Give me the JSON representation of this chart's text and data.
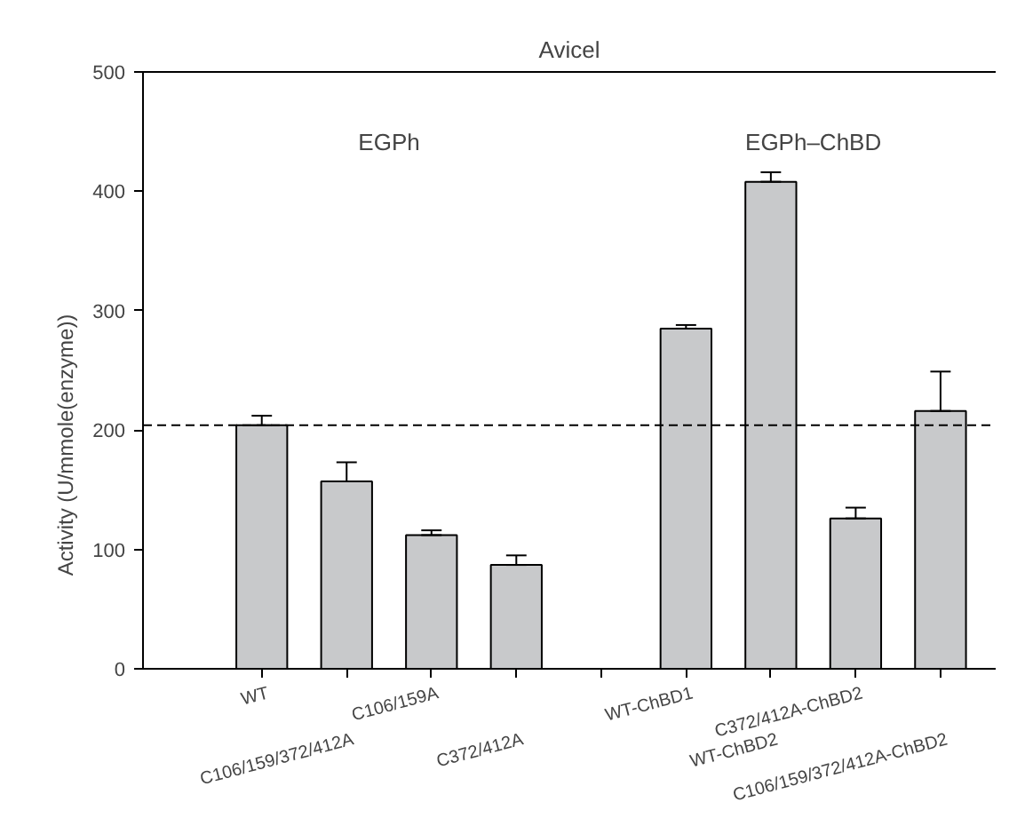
{
  "chart_data": {
    "type": "bar",
    "title": "Avicel",
    "ylabel": "Activity (U/mmole(enzyme))",
    "categories": [
      "WT",
      "C106/159/372/412A",
      "C106/159A",
      "C372/412A",
      null,
      "WT-ChBD1",
      "WT-ChBD2",
      "C372/412A-ChBD2",
      "C106/159/372/412A-ChBD2"
    ],
    "values": [
      204,
      157,
      112,
      87,
      null,
      285,
      408,
      126,
      216
    ],
    "errors": [
      [
        204,
        212
      ],
      [
        157,
        173
      ],
      [
        112,
        116
      ],
      [
        87,
        95
      ],
      null,
      [
        285,
        288
      ],
      [
        408,
        416
      ],
      [
        126,
        135
      ],
      [
        216,
        249
      ]
    ],
    "color": "#c8c9cb",
    "ylim": [
      0,
      500
    ],
    "yticks": [
      0,
      100,
      200,
      300,
      400,
      500
    ],
    "ref_lines": [
      {
        "axis": "y",
        "value": 204,
        "line_style": "dashed"
      }
    ],
    "annotations": [
      "EGPh",
      "EGPh–ChBD"
    ],
    "grid": false
  }
}
